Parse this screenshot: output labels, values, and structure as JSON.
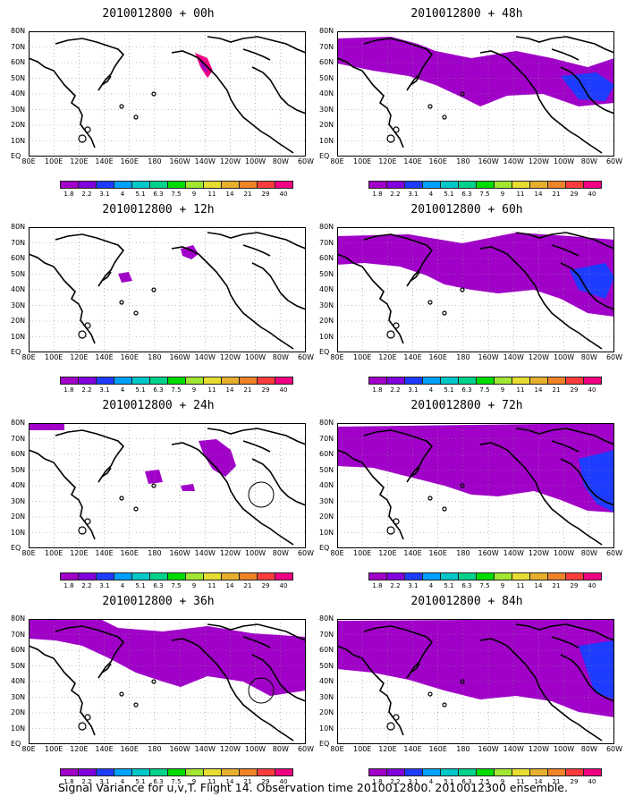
{
  "panels": [
    {
      "title": "2010012800 + 00h"
    },
    {
      "title": "2010012800 + 48h"
    },
    {
      "title": "2010012800 + 12h"
    },
    {
      "title": "2010012800 + 60h"
    },
    {
      "title": "2010012800 + 24h"
    },
    {
      "title": "2010012800 + 72h"
    },
    {
      "title": "2010012800 + 36h"
    },
    {
      "title": "2010012800 + 84h"
    }
  ],
  "lat_labels": [
    "80N",
    "70N",
    "60N",
    "50N",
    "40N",
    "30N",
    "20N",
    "10N",
    "EQ"
  ],
  "lon_labels": [
    "80E",
    "100E",
    "120E",
    "140E",
    "160E",
    "180",
    "160W",
    "140W",
    "120W",
    "100W",
    "80W",
    "60W"
  ],
  "colorbar": {
    "ticks": [
      "1.8",
      "2.2",
      "3.1",
      "4",
      "5.1",
      "6.3",
      "7.5",
      "9",
      "11",
      "14",
      "21",
      "29",
      "40"
    ],
    "colors": [
      "#a000c8",
      "#8200dc",
      "#1e3cff",
      "#00a0ff",
      "#00c8c8",
      "#00d28c",
      "#00dc00",
      "#a0e632",
      "#e6dc32",
      "#e6af2d",
      "#f08228",
      "#fa3c3c",
      "#f00082"
    ]
  },
  "caption": "Signal Variance for u,v,T. Flight 14. Observation time 2010012800. 2010012300 ensemble."
}
